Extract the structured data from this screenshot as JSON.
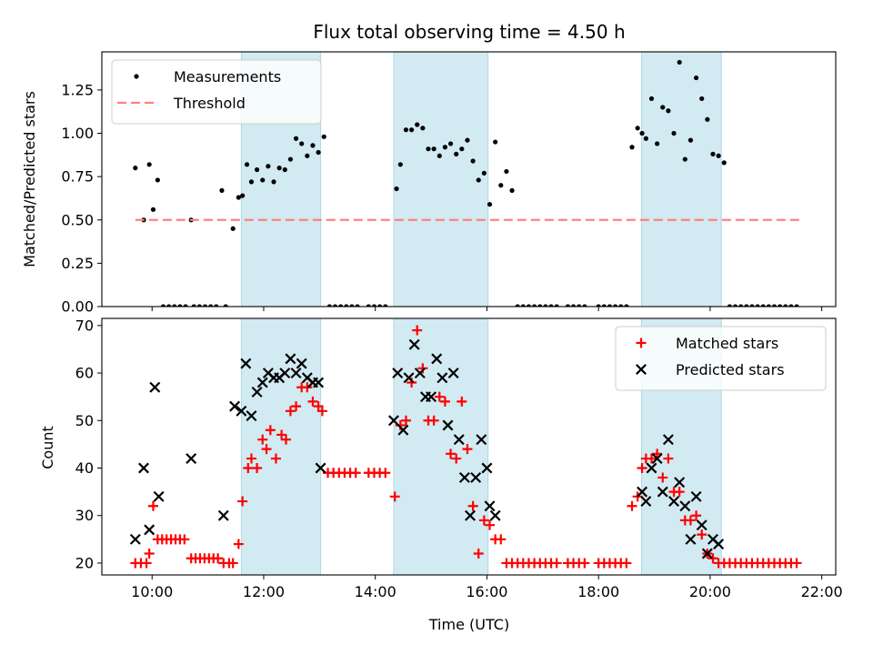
{
  "chart_data": [
    {
      "type": "scatter",
      "title": "Flux total observing time = 4.50 h",
      "xlabel": "",
      "ylabel": "Matched/Predicted stars",
      "xlim": [
        9.1,
        22.25
      ],
      "ylim": [
        0.0,
        1.47
      ],
      "yticks": [
        0.0,
        0.25,
        0.5,
        0.75,
        1.0,
        1.25
      ],
      "ytick_labels": [
        "0.00",
        "0.25",
        "0.50",
        "0.75",
        "1.00",
        "1.25"
      ],
      "xticks": [
        10,
        12,
        14,
        16,
        18,
        20,
        22
      ],
      "xtick_labels": [
        "10:00",
        "12:00",
        "14:00",
        "16:00",
        "18:00",
        "20:00",
        "22:00"
      ],
      "show_xtick_labels": false,
      "legend_position": "top-left",
      "shaded_regions": [
        [
          11.6,
          13.02
        ],
        [
          14.33,
          16.02
        ],
        [
          18.77,
          20.2
        ]
      ],
      "shade_color": "#add8e6",
      "series": [
        {
          "name": "Measurements",
          "marker": "dot",
          "color": "#000000",
          "x": [
            9.7,
            9.85,
            9.95,
            10.02,
            10.1,
            10.2,
            10.3,
            10.4,
            10.5,
            10.6,
            10.7,
            10.75,
            10.85,
            10.95,
            11.05,
            11.15,
            11.25,
            11.32,
            11.45,
            11.55,
            11.62,
            11.7,
            11.78,
            11.88,
            11.98,
            12.08,
            12.18,
            12.28,
            12.38,
            12.48,
            12.58,
            12.68,
            12.78,
            12.88,
            12.98,
            13.08,
            13.18,
            13.28,
            13.38,
            13.48,
            13.58,
            13.68,
            13.88,
            13.98,
            14.08,
            14.18,
            14.38,
            14.45,
            14.55,
            14.65,
            14.75,
            14.85,
            14.95,
            15.05,
            15.15,
            15.25,
            15.35,
            15.45,
            15.55,
            15.65,
            15.75,
            15.85,
            15.95,
            16.05,
            16.15,
            16.25,
            16.35,
            16.45,
            16.55,
            16.65,
            16.75,
            16.85,
            16.95,
            17.05,
            17.15,
            17.25,
            17.45,
            17.55,
            17.65,
            17.75,
            18.0,
            18.1,
            18.2,
            18.3,
            18.4,
            18.5,
            18.6,
            18.7,
            18.78,
            18.85,
            18.95,
            19.05,
            19.15,
            19.25,
            19.35,
            19.45,
            19.55,
            19.65,
            19.75,
            19.85,
            19.95,
            20.05,
            20.15,
            20.25,
            20.35,
            20.45,
            20.55,
            20.65,
            20.75,
            20.85,
            20.95,
            21.05,
            21.15,
            21.25,
            21.35,
            21.45,
            21.55
          ],
          "y": [
            0.8,
            0.5,
            0.82,
            0.56,
            0.73,
            0.0,
            0.0,
            0.0,
            0.0,
            0.0,
            0.5,
            0.0,
            0.0,
            0.0,
            0.0,
            0.0,
            0.67,
            0.0,
            0.45,
            0.63,
            0.64,
            0.82,
            0.72,
            0.79,
            0.73,
            0.81,
            0.72,
            0.8,
            0.79,
            0.85,
            0.97,
            0.94,
            0.87,
            0.93,
            0.89,
            0.98,
            0.0,
            0.0,
            0.0,
            0.0,
            0.0,
            0.0,
            0.0,
            0.0,
            0.0,
            0.0,
            0.68,
            0.82,
            1.02,
            1.02,
            1.05,
            1.03,
            0.91,
            0.91,
            0.87,
            0.92,
            0.94,
            0.88,
            0.91,
            0.96,
            0.84,
            0.73,
            0.77,
            0.59,
            0.95,
            0.7,
            0.78,
            0.67,
            0.0,
            0.0,
            0.0,
            0.0,
            0.0,
            0.0,
            0.0,
            0.0,
            0.0,
            0.0,
            0.0,
            0.0,
            0.0,
            0.0,
            0.0,
            0.0,
            0.0,
            0.0,
            0.92,
            1.03,
            1.0,
            0.97,
            1.2,
            0.94,
            1.15,
            1.13,
            1.0,
            1.41,
            0.85,
            0.96,
            1.32,
            1.2,
            1.08,
            0.88,
            0.87,
            0.83,
            0.0,
            0.0,
            0.0,
            0.0,
            0.0,
            0.0,
            0.0,
            0.0,
            0.0,
            0.0,
            0.0,
            0.0,
            0.0
          ]
        },
        {
          "name": "Threshold",
          "line_style": "dashed",
          "color": "#ff8080",
          "x": [
            9.7,
            21.6
          ],
          "y": [
            0.5,
            0.5
          ]
        }
      ]
    },
    {
      "type": "scatter",
      "title": "",
      "xlabel": "Time (UTC)",
      "ylabel": "Count",
      "xlim": [
        9.1,
        22.25
      ],
      "ylim": [
        17.5,
        71.5
      ],
      "yticks": [
        20,
        30,
        40,
        50,
        60,
        70
      ],
      "ytick_labels": [
        "20",
        "30",
        "40",
        "50",
        "60",
        "70"
      ],
      "xticks": [
        10,
        12,
        14,
        16,
        18,
        20,
        22
      ],
      "xtick_labels": [
        "10:00",
        "12:00",
        "14:00",
        "16:00",
        "18:00",
        "20:00",
        "22:00"
      ],
      "show_xtick_labels": true,
      "legend_position": "top-right",
      "shaded_regions": [
        [
          11.6,
          13.02
        ],
        [
          14.33,
          16.02
        ],
        [
          18.77,
          20.2
        ]
      ],
      "shade_color": "#add8e6",
      "series": [
        {
          "name": "Matched stars",
          "marker": "plus",
          "color": "#ff0000",
          "x": [
            9.7,
            9.8,
            9.9,
            9.95,
            10.02,
            10.1,
            10.18,
            10.26,
            10.34,
            10.42,
            10.5,
            10.58,
            10.7,
            10.78,
            10.86,
            10.94,
            11.02,
            11.1,
            11.18,
            11.28,
            11.38,
            11.45,
            11.55,
            11.62,
            11.72,
            11.78,
            11.88,
            11.98,
            12.05,
            12.12,
            12.22,
            12.32,
            12.4,
            12.48,
            12.58,
            12.68,
            12.78,
            12.88,
            12.98,
            13.05,
            13.15,
            13.25,
            13.35,
            13.45,
            13.55,
            13.65,
            13.88,
            13.98,
            14.08,
            14.18,
            14.35,
            14.45,
            14.55,
            14.65,
            14.75,
            14.85,
            14.95,
            15.05,
            15.15,
            15.25,
            15.35,
            15.45,
            15.55,
            15.65,
            15.75,
            15.85,
            15.95,
            16.05,
            16.15,
            16.25,
            16.35,
            16.45,
            16.55,
            16.65,
            16.75,
            16.85,
            16.95,
            17.05,
            17.15,
            17.25,
            17.45,
            17.55,
            17.65,
            17.75,
            18.0,
            18.1,
            18.2,
            18.3,
            18.4,
            18.5,
            18.6,
            18.7,
            18.78,
            18.85,
            18.95,
            19.05,
            19.15,
            19.25,
            19.35,
            19.45,
            19.55,
            19.65,
            19.75,
            19.85,
            19.95,
            20.05,
            20.15,
            20.25,
            20.35,
            20.45,
            20.55,
            20.65,
            20.75,
            20.85,
            20.95,
            21.05,
            21.15,
            21.25,
            21.35,
            21.45,
            21.55
          ],
          "y": [
            20,
            20,
            20,
            22,
            32,
            25,
            25,
            25,
            25,
            25,
            25,
            25,
            21,
            21,
            21,
            21,
            21,
            21,
            21,
            20,
            20,
            20,
            24,
            33,
            40,
            42,
            40,
            46,
            44,
            48,
            42,
            47,
            46,
            52,
            53,
            57,
            57,
            54,
            53,
            52,
            39,
            39,
            39,
            39,
            39,
            39,
            39,
            39,
            39,
            39,
            34,
            49,
            50,
            58,
            69,
            61,
            50,
            50,
            55,
            54,
            43,
            42,
            54,
            44,
            32,
            22,
            29,
            28,
            25,
            25,
            20,
            20,
            20,
            20,
            20,
            20,
            20,
            20,
            20,
            20,
            20,
            20,
            20,
            20,
            20,
            20,
            20,
            20,
            20,
            20,
            32,
            34,
            40,
            42,
            42,
            43,
            38,
            42,
            35,
            35,
            29,
            29,
            30,
            26,
            22,
            21,
            20,
            20,
            20,
            20,
            20,
            20,
            20,
            20,
            20,
            20,
            20,
            20,
            20,
            20,
            20
          ]
        },
        {
          "name": "Predicted stars",
          "marker": "x",
          "color": "#000000",
          "x": [
            9.7,
            9.85,
            9.95,
            10.05,
            10.12,
            10.7,
            11.28,
            11.48,
            11.6,
            11.68,
            11.78,
            11.88,
            11.98,
            12.08,
            12.18,
            12.28,
            12.38,
            12.48,
            12.58,
            12.68,
            12.78,
            12.88,
            12.98,
            13.02,
            14.33,
            14.4,
            14.5,
            14.6,
            14.7,
            14.8,
            14.9,
            15.0,
            15.1,
            15.2,
            15.3,
            15.4,
            15.5,
            15.6,
            15.7,
            15.8,
            15.9,
            16.0,
            16.05,
            16.15,
            18.78,
            18.85,
            18.95,
            19.05,
            19.15,
            19.25,
            19.35,
            19.45,
            19.55,
            19.65,
            19.75,
            19.85,
            19.95,
            20.05,
            20.15
          ],
          "y": [
            25,
            40,
            27,
            57,
            34,
            42,
            30,
            53,
            52,
            62,
            51,
            56,
            58,
            60,
            59,
            59,
            60,
            63,
            60,
            62,
            59,
            58,
            58,
            40,
            50,
            60,
            48,
            59,
            66,
            60,
            55,
            55,
            63,
            59,
            49,
            60,
            46,
            38,
            30,
            38,
            46,
            40,
            32,
            30,
            35,
            33,
            40,
            42,
            35,
            46,
            33,
            37,
            32,
            25,
            34,
            28,
            22,
            25,
            24
          ]
        }
      ]
    }
  ]
}
